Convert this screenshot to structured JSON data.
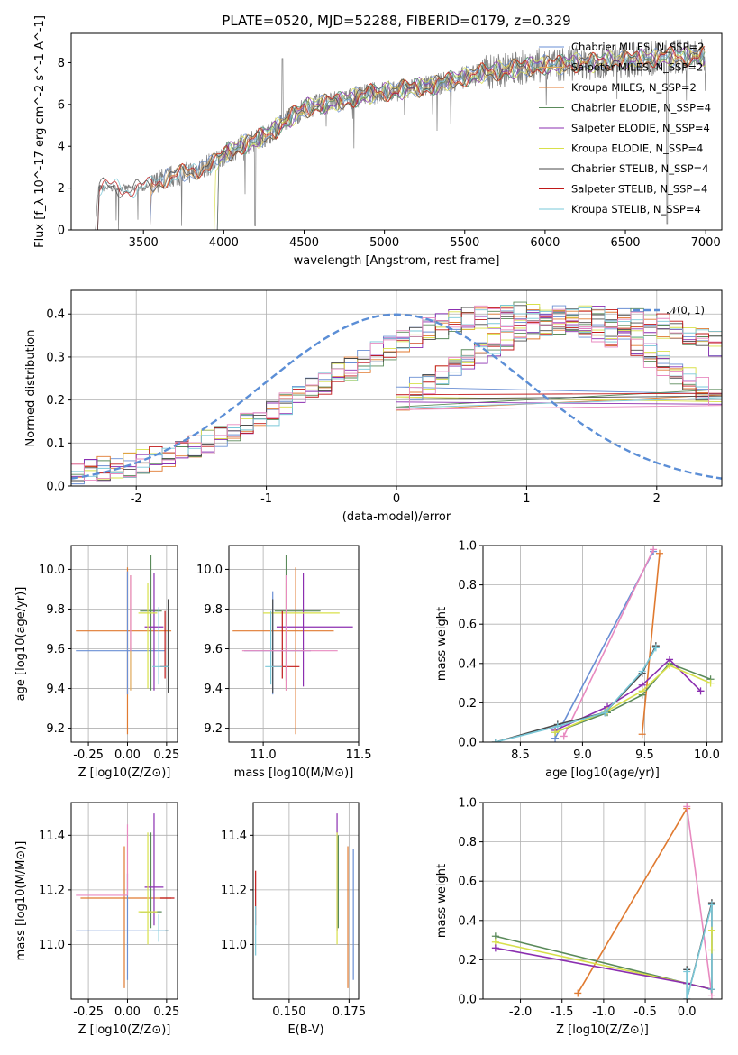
{
  "figure_title": "PLATE=0520, MJD=52288, FIBERID=0179, z=0.329",
  "colors": {
    "Chabrier MILES": "#6a8fd4",
    "Salpeter MILES": "#e0a85a",
    "Kroupa MILES": "#e07a30",
    "Chabrier ELODIE": "#5a8a5a",
    "Salpeter ELODIE": "#8b2fb0",
    "Kroupa ELODIE": "#d8e04a",
    "Chabrier STELIB": "#4a4a4a",
    "Salpeter STELIB": "#c01818",
    "Kroupa STELIB": "#7ac8d8",
    "spectrum": "#808080",
    "normal": "#5b8ed6",
    "pink": "#e88ac0"
  },
  "chart_data": [
    {
      "panel": "spectrum",
      "type": "line",
      "title": "PLATE=0520, MJD=52288, FIBERID=0179, z=0.329",
      "xlabel": "wavelength [Angstrom, rest frame]",
      "ylabel": "Flux [f_λ 10^-17 erg cm^-2 s^-1 A^-1]",
      "xlim": [
        3050,
        7100
      ],
      "ylim": [
        0,
        9.4
      ],
      "xticks": [
        3500,
        4000,
        4500,
        5000,
        5500,
        6000,
        6500,
        7000
      ],
      "yticks": [
        0,
        2,
        4,
        6,
        8
      ],
      "spectrum_profile": {
        "x": [
          3200,
          3220,
          3300,
          3400,
          3500,
          3550,
          3600,
          3700,
          3800,
          3900,
          3950,
          4000,
          4100,
          4200,
          4300,
          4400,
          4500,
          4600,
          4700,
          4800,
          4900,
          5000,
          5100,
          5200,
          5300,
          5400,
          5500,
          5600,
          5700,
          5800,
          5900,
          6000,
          6100,
          6200,
          6300,
          6400,
          6500,
          6600,
          6700,
          6760,
          6800,
          6900,
          7000
        ],
        "y": [
          0,
          2.0,
          2.0,
          2.0,
          2.0,
          2.1,
          2.4,
          2.6,
          2.8,
          3.1,
          3.2,
          3.6,
          4.0,
          4.3,
          4.7,
          5.3,
          5.8,
          6.0,
          6.1,
          6.3,
          6.5,
          6.6,
          6.7,
          6.8,
          6.9,
          7.1,
          7.3,
          7.5,
          7.6,
          7.7,
          7.8,
          7.9,
          7.9,
          8.0,
          8.0,
          8.1,
          8.1,
          8.2,
          8.2,
          8.3,
          8.3,
          8.3,
          8.3
        ]
      },
      "series": [
        {
          "name": "Chabrier MILES, N_SSP=2"
        },
        {
          "name": "Salpeter MILES, N_SSP=2"
        },
        {
          "name": "Kroupa MILES, N_SSP=2"
        },
        {
          "name": "Chabrier ELODIE, N_SSP=4"
        },
        {
          "name": "Salpeter ELODIE, N_SSP=4"
        },
        {
          "name": "Kroupa ELODIE, N_SSP=4"
        },
        {
          "name": "Chabrier STELIB, N_SSP=4"
        },
        {
          "name": "Salpeter STELIB, N_SSP=4"
        },
        {
          "name": "Kroupa STELIB, N_SSP=4"
        }
      ],
      "legend_position": "upper-right"
    },
    {
      "panel": "histogram",
      "type": "line",
      "xlabel": "(data-model)/error",
      "ylabel": "Normed distribution",
      "xlim": [
        -2.5,
        2.5
      ],
      "ylim": [
        0,
        0.455
      ],
      "xticks": [
        -2,
        -1,
        0,
        1,
        2
      ],
      "yticks": [
        0.0,
        0.1,
        0.2,
        0.3,
        0.4
      ],
      "grid": true,
      "legend": "𝒩(0, 1)",
      "legend_position": "upper-right",
      "bin_width": 0.1,
      "bin_start": -2.5,
      "histogram_profile": [
        0.028,
        0.035,
        0.04,
        0.045,
        0.05,
        0.055,
        0.062,
        0.07,
        0.08,
        0.09,
        0.1,
        0.112,
        0.125,
        0.14,
        0.155,
        0.17,
        0.188,
        0.205,
        0.222,
        0.24,
        0.257,
        0.275,
        0.292,
        0.308,
        0.323,
        0.338,
        0.35,
        0.362,
        0.372,
        0.38,
        0.387,
        0.392,
        0.395,
        0.397,
        0.398,
        0.397,
        0.395,
        0.39,
        0.383,
        0.374,
        0.363,
        0.35,
        0.336,
        0.32,
        0.303,
        0.285,
        0.266,
        0.247,
        0.228,
        0.209
      ]
    },
    {
      "panel": "age-vs-Z",
      "type": "scatter",
      "xlabel": "Z [log10(Z/Z⊙)]",
      "ylabel": "age  [log10(age/yr)]",
      "xlim": [
        -0.36,
        0.32
      ],
      "ylim": [
        9.13,
        10.12
      ],
      "xticks": [
        -0.25,
        0.0,
        0.25
      ],
      "yticks": [
        9.2,
        9.4,
        9.6,
        9.8,
        10.0
      ],
      "grid": true,
      "points": [
        {
          "s": "Kroupa MILES",
          "x": 0.0,
          "y": 9.69,
          "xerr": [
            0.33,
            0.28
          ],
          "yerr": [
            0.52,
            0.32
          ]
        },
        {
          "s": "Chabrier MILES",
          "x": 0.0,
          "y": 9.59,
          "xerr": [
            0.33,
            0.24
          ],
          "yerr": [
            0.22,
            0.4
          ]
        },
        {
          "s": "Salpeter MILES",
          "x": 0.02,
          "y": 9.59,
          "xerr": [
            0.0,
            0.0
          ],
          "yerr": [
            0.2,
            0.38
          ]
        },
        {
          "s": "Chabrier ELODIE",
          "x": 0.15,
          "y": 9.79,
          "xerr": [
            0.07,
            0.07
          ],
          "yerr": [
            0.4,
            0.28
          ]
        },
        {
          "s": "Salpeter ELODIE",
          "x": 0.17,
          "y": 9.71,
          "xerr": [
            0.06,
            0.06
          ],
          "yerr": [
            0.32,
            0.27
          ]
        },
        {
          "s": "Kroupa ELODIE",
          "x": 0.13,
          "y": 9.78,
          "xerr": [
            0.06,
            0.06
          ],
          "yerr": [
            0.38,
            0.15
          ]
        },
        {
          "s": "Chabrier STELIB",
          "x": 0.26,
          "y": 9.51,
          "xerr": [
            0.02,
            0.0
          ],
          "yerr": [
            0.13,
            0.34
          ]
        },
        {
          "s": "Salpeter STELIB",
          "x": 0.24,
          "y": 9.51,
          "xerr": [
            0.03,
            0.0
          ],
          "yerr": [
            0.06,
            0.28
          ]
        },
        {
          "s": "Kroupa STELIB",
          "x": 0.2,
          "y": 9.51,
          "xerr": [
            0.04,
            0.06
          ],
          "yerr": [
            0.09,
            0.3
          ]
        },
        {
          "s": "pink",
          "x": 0.02,
          "y": 9.59,
          "xerr": [
            0.0,
            0.0
          ],
          "yerr": [
            0.0,
            0.38
          ]
        }
      ]
    },
    {
      "panel": "age-vs-mass",
      "type": "scatter",
      "xlabel": "mass [log10(M/M⊙)]",
      "ylabel": "",
      "xlim": [
        10.82,
        11.5
      ],
      "ylim": [
        9.13,
        10.12
      ],
      "xticks": [
        11.0,
        11.5
      ],
      "yticks": [
        9.2,
        9.4,
        9.6,
        9.8,
        10.0
      ],
      "grid": true,
      "points": [
        {
          "s": "Kroupa MILES",
          "x": 11.17,
          "y": 9.69,
          "xerr": [
            0.33,
            0.2
          ],
          "yerr": [
            0.52,
            0.32
          ]
        },
        {
          "s": "Chabrier MILES",
          "x": 11.05,
          "y": 9.59,
          "xerr": [
            0.15,
            0.2
          ],
          "yerr": [
            0.22,
            0.3
          ]
        },
        {
          "s": "Salpeter MILES",
          "x": 11.12,
          "y": 9.59,
          "xerr": [
            0.0,
            0.0
          ],
          "yerr": [
            0.2,
            0.38
          ]
        },
        {
          "s": "Chabrier ELODIE",
          "x": 11.12,
          "y": 9.79,
          "xerr": [
            0.06,
            0.18
          ],
          "yerr": [
            0.35,
            0.28
          ]
        },
        {
          "s": "Salpeter ELODIE",
          "x": 11.21,
          "y": 9.71,
          "xerr": [
            0.14,
            0.26
          ],
          "yerr": [
            0.3,
            0.27
          ]
        },
        {
          "s": "Kroupa ELODIE",
          "x": 11.12,
          "y": 9.78,
          "xerr": [
            0.12,
            0.28
          ],
          "yerr": [
            0.38,
            0.15
          ]
        },
        {
          "s": "Chabrier STELIB",
          "x": 11.05,
          "y": 9.51,
          "xerr": [
            0.0,
            0.0
          ],
          "yerr": [
            0.13,
            0.34
          ]
        },
        {
          "s": "Salpeter STELIB",
          "x": 11.1,
          "y": 9.51,
          "xerr": [
            0.05,
            0.09
          ],
          "yerr": [
            0.06,
            0.28
          ]
        },
        {
          "s": "Kroupa STELIB",
          "x": 11.04,
          "y": 9.51,
          "xerr": [
            0.03,
            0.06
          ],
          "yerr": [
            0.09,
            0.28
          ]
        },
        {
          "s": "pink",
          "x": 11.12,
          "y": 9.59,
          "xerr": [
            0.23,
            0.27
          ],
          "yerr": [
            0.2,
            0.38
          ]
        }
      ]
    },
    {
      "panel": "mass-weight-vs-age",
      "type": "line",
      "xlabel": "age  [log10(age/yr)]",
      "ylabel": "mass weight",
      "xlim": [
        8.2,
        10.12
      ],
      "ylim": [
        0,
        1.0
      ],
      "xticks": [
        8.5,
        9.0,
        9.5,
        10.0
      ],
      "yticks": [
        0.0,
        0.2,
        0.4,
        0.6,
        0.8,
        1.0
      ],
      "grid": true,
      "series": [
        {
          "s": "Chabrier MILES",
          "x": [
            8.78,
            9.57
          ],
          "y": [
            0.02,
            0.97
          ]
        },
        {
          "s": "pink",
          "x": [
            8.85,
            9.57
          ],
          "y": [
            0.03,
            0.98
          ]
        },
        {
          "s": "Kroupa MILES",
          "x": [
            9.48,
            9.62
          ],
          "y": [
            0.04,
            0.96
          ]
        },
        {
          "s": "Chabrier ELODIE",
          "x": [
            8.78,
            9.2,
            9.48,
            9.7,
            10.03
          ],
          "y": [
            0.05,
            0.15,
            0.24,
            0.4,
            0.32
          ]
        },
        {
          "s": "Salpeter ELODIE",
          "x": [
            8.78,
            9.2,
            9.48,
            9.7,
            9.95
          ],
          "y": [
            0.06,
            0.18,
            0.29,
            0.42,
            0.26
          ]
        },
        {
          "s": "Kroupa ELODIE",
          "x": [
            8.78,
            9.2,
            9.48,
            9.7,
            10.03
          ],
          "y": [
            0.05,
            0.16,
            0.26,
            0.39,
            0.3
          ]
        },
        {
          "s": "Chabrier STELIB",
          "x": [
            8.3,
            8.8,
            9.18,
            9.48,
            9.59
          ],
          "y": [
            0.0,
            0.09,
            0.15,
            0.35,
            0.49
          ]
        },
        {
          "s": "Kroupa STELIB",
          "x": [
            8.3,
            8.8,
            9.18,
            9.48,
            9.59
          ],
          "y": [
            0.0,
            0.08,
            0.15,
            0.36,
            0.48
          ]
        }
      ]
    },
    {
      "panel": "mass-vs-Z",
      "type": "scatter",
      "xlabel": "Z [log10(Z/Z⊙)]",
      "ylabel": "mass [log10(M/M⊙)]",
      "xlim": [
        -0.36,
        0.32
      ],
      "ylim": [
        10.8,
        11.52
      ],
      "xticks": [
        -0.25,
        0.0,
        0.25
      ],
      "yticks": [
        11.0,
        11.2,
        11.4
      ],
      "grid": true,
      "points": [
        {
          "s": "Kroupa MILES",
          "x": -0.02,
          "y": 11.17,
          "xerr": [
            0.28,
            0.3
          ],
          "yerr": [
            0.33,
            0.19
          ]
        },
        {
          "s": "Chabrier MILES",
          "x": 0.0,
          "y": 11.05,
          "xerr": [
            0.33,
            0.26
          ],
          "yerr": [
            0.18,
            0.21
          ]
        },
        {
          "s": "pink",
          "x": 0.0,
          "y": 11.18,
          "xerr": [
            0.33,
            0.0
          ],
          "yerr": [
            0.0,
            0.26
          ]
        },
        {
          "s": "Chabrier ELODIE",
          "x": 0.15,
          "y": 11.12,
          "xerr": [
            0.07,
            0.07
          ],
          "yerr": [
            0.06,
            0.29
          ]
        },
        {
          "s": "Salpeter ELODIE",
          "x": 0.17,
          "y": 11.21,
          "xerr": [
            0.06,
            0.06
          ],
          "yerr": [
            0.14,
            0.27
          ]
        },
        {
          "s": "Kroupa ELODIE",
          "x": 0.13,
          "y": 11.12,
          "xerr": [
            0.06,
            0.06
          ],
          "yerr": [
            0.12,
            0.29
          ]
        },
        {
          "s": "Chabrier STELIB",
          "x": 0.26,
          "y": 11.05,
          "xerr": [
            0.02,
            0.0
          ],
          "yerr": [
            0.0,
            0.0
          ]
        },
        {
          "s": "Salpeter STELIB",
          "x": 0.24,
          "y": 11.17,
          "xerr": [
            0.03,
            0.06
          ],
          "yerr": [
            0.0,
            0.0
          ]
        },
        {
          "s": "Kroupa STELIB",
          "x": 0.2,
          "y": 11.05,
          "xerr": [
            0.04,
            0.06
          ],
          "yerr": [
            0.04,
            0.06
          ]
        }
      ]
    },
    {
      "panel": "mass-vs-EBV",
      "type": "scatter",
      "xlabel": "E(B-V)",
      "ylabel": "",
      "xlim": [
        0.135,
        0.179
      ],
      "ylim": [
        10.8,
        11.52
      ],
      "xticks": [
        0.15,
        0.175
      ],
      "yticks": [
        11.0,
        11.2,
        11.4
      ],
      "grid": true,
      "points": [
        {
          "s": "Salpeter STELIB",
          "x": 0.136,
          "y": 11.17,
          "yerr": [
            0.1,
            0.1
          ]
        },
        {
          "s": "Kroupa STELIB",
          "x": 0.136,
          "y": 11.05,
          "yerr": [
            0.09,
            0.09
          ]
        },
        {
          "s": "Salpeter ELODIE",
          "x": 0.17,
          "y": 11.21,
          "yerr": [
            0.16,
            0.27
          ]
        },
        {
          "s": "Kroupa ELODIE",
          "x": 0.17,
          "y": 11.12,
          "yerr": [
            0.12,
            0.29
          ]
        },
        {
          "s": "Chabrier ELODIE",
          "x": 0.1705,
          "y": 11.12,
          "yerr": [
            0.06,
            0.28
          ]
        },
        {
          "s": "Kroupa MILES",
          "x": 0.1745,
          "y": 11.17,
          "yerr": [
            0.33,
            0.19
          ]
        },
        {
          "s": "Chabrier MILES",
          "x": 0.1768,
          "y": 11.05,
          "yerr": [
            0.18,
            0.3
          ]
        },
        {
          "s": "pink",
          "x": 0.1762,
          "y": 11.05,
          "yerr": [
            0.0,
            0.0
          ]
        }
      ]
    },
    {
      "panel": "mass-weight-vs-Z",
      "type": "line",
      "xlabel": "Z [log10(Z/Z⊙)]",
      "ylabel": "mass weight",
      "xlim": [
        -2.45,
        0.42
      ],
      "ylim": [
        0,
        1.0
      ],
      "xticks": [
        -2.0,
        -1.5,
        -1.0,
        -0.5,
        0.0
      ],
      "yticks": [
        0.0,
        0.2,
        0.4,
        0.6,
        0.8,
        1.0
      ],
      "grid": true,
      "series": [
        {
          "s": "Kroupa MILES",
          "x": [
            -1.31,
            0.0
          ],
          "y": [
            0.03,
            0.97
          ]
        },
        {
          "s": "pink",
          "x": [
            0.0,
            0.3
          ],
          "y": [
            0.98,
            0.02
          ]
        },
        {
          "s": "Chabrier ELODIE",
          "x": [
            -2.3,
            0.0,
            0.3
          ],
          "y": [
            0.32,
            0.08,
            0.05
          ]
        },
        {
          "s": "Kroupa ELODIE",
          "x": [
            -2.3,
            0.0,
            0.3
          ],
          "y": [
            0.29,
            0.08,
            0.05
          ]
        },
        {
          "s": "Salpeter ELODIE",
          "x": [
            -2.3,
            0.0,
            0.3
          ],
          "y": [
            0.26,
            0.08,
            0.05
          ]
        },
        {
          "s": "Chabrier STELIB",
          "x": [
            0.0,
            0.0,
            0.3,
            0.3
          ],
          "y": [
            0.15,
            0.0,
            0.49,
            0.05
          ]
        },
        {
          "s": "Kroupa STELIB",
          "x": [
            0.0,
            0.0,
            0.3,
            0.3
          ],
          "y": [
            0.14,
            0.0,
            0.48,
            0.05
          ]
        },
        {
          "s": "Kroupa ELODIE",
          "x": [
            0.3,
            0.3
          ],
          "y": [
            0.25,
            0.35
          ]
        }
      ]
    }
  ]
}
